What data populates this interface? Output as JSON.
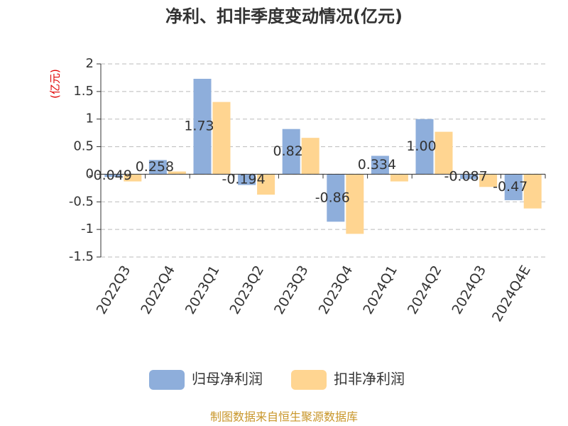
{
  "chart_data": {
    "type": "bar",
    "title": "净利、扣非季度变动情况(亿元)",
    "y_label": "(亿元)",
    "categories": [
      "2022Q3",
      "2022Q4",
      "2023Q1",
      "2023Q2",
      "2023Q3",
      "2023Q4",
      "2024Q1",
      "2024Q2",
      "2024Q3",
      "2024Q4E"
    ],
    "series": [
      {
        "name": "归母净利润",
        "color": "#8eaedb",
        "values": [
          -0.049,
          0.258,
          1.73,
          -0.194,
          0.82,
          -0.86,
          0.334,
          1,
          -0.087,
          -0.47
        ],
        "value_labels": [
          "-0.049",
          "0.258",
          "1.73",
          "-0.194",
          "0.82",
          "-0.86",
          "0.334",
          "1.00",
          "-0.087",
          "-0.47"
        ]
      },
      {
        "name": "扣非净利润",
        "color": "#ffd591",
        "values": [
          -0.13,
          0.05,
          1.31,
          -0.37,
          0.66,
          -1.08,
          -0.13,
          0.77,
          -0.23,
          -0.62
        ]
      }
    ],
    "ylim": [
      -1.5,
      2
    ],
    "yticks": [
      -1.5,
      -1,
      -0.5,
      0,
      0.5,
      1,
      1.5,
      2
    ],
    "grid": true,
    "legend": "bottom",
    "source": "制图数据来自恒生聚源数据库"
  }
}
